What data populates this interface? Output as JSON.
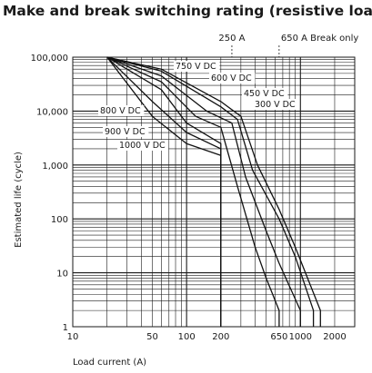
{
  "chart_data": {
    "type": "line",
    "title": "Make and break switching rating (resistive load)",
    "xlabel": "Load current (A)",
    "ylabel": "Estimated life (cycle)",
    "x_scale": "log",
    "y_scale": "log",
    "xlim": [
      10,
      3000
    ],
    "ylim": [
      1,
      100000
    ],
    "x_tick_labels": [
      "10",
      "50",
      "100",
      "200",
      "650",
      "1000",
      "2000"
    ],
    "x_tick_values": [
      10,
      50,
      100,
      200,
      650,
      1000,
      2000
    ],
    "y_tick_labels": [
      "1",
      "10",
      "100",
      "1,000",
      "10,000",
      "100,000"
    ],
    "y_tick_values": [
      1,
      10,
      100,
      1000,
      10000,
      100000
    ],
    "top_annotations": [
      {
        "text": "250 A",
        "x": 250
      },
      {
        "text": "650 A Break only",
        "x": 650
      }
    ],
    "grid": true,
    "series": [
      {
        "name": "300 V DC",
        "x": [
          20,
          60,
          200,
          300,
          420,
          650,
          900,
          1500,
          1500
        ],
        "y": [
          100000,
          60000,
          15000,
          8000,
          1000,
          150,
          30,
          2,
          1
        ]
      },
      {
        "name": "450 V DC",
        "x": [
          20,
          60,
          200,
          280,
          380,
          650,
          900,
          1300,
          1300
        ],
        "y": [
          100000,
          55000,
          12000,
          7000,
          800,
          100,
          20,
          2,
          1
        ]
      },
      {
        "name": "600 V DC",
        "x": [
          20,
          60,
          150,
          250,
          330,
          500,
          650,
          1000,
          1000
        ],
        "y": [
          100000,
          45000,
          10000,
          6000,
          600,
          60,
          15,
          2,
          1
        ]
      },
      {
        "name": "750 V DC",
        "x": [
          20,
          60,
          120,
          200,
          280,
          400,
          500,
          650,
          650
        ],
        "y": [
          100000,
          35000,
          8000,
          5000,
          400,
          30,
          8,
          2,
          1
        ]
      },
      {
        "name": "800 V DC",
        "x": [
          20,
          60,
          100,
          200,
          200
        ],
        "y": [
          100000,
          25000,
          6000,
          2500,
          1
        ]
      },
      {
        "name": "900 V DC",
        "x": [
          20,
          50,
          100,
          200,
          200
        ],
        "y": [
          100000,
          15000,
          4000,
          2000,
          1
        ]
      },
      {
        "name": "1000 V DC",
        "x": [
          20,
          50,
          100,
          200,
          200
        ],
        "y": [
          100000,
          8000,
          2500,
          1500,
          1
        ]
      }
    ]
  }
}
